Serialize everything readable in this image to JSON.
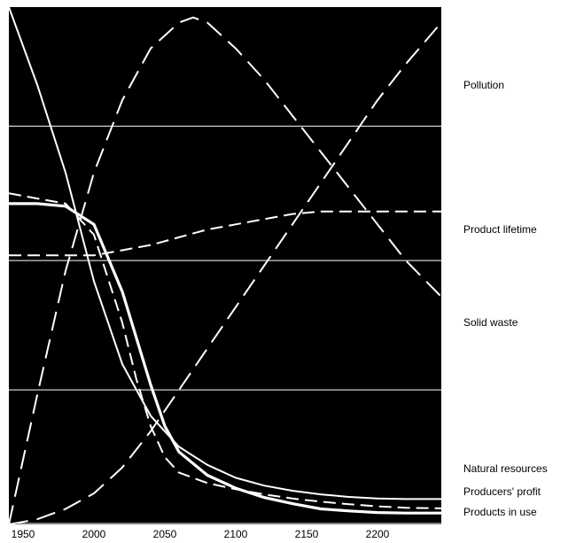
{
  "chart_data": {
    "type": "line",
    "title": "",
    "xlabel": "",
    "ylabel": "",
    "xlim": [
      1940,
      2245
    ],
    "ylim": [
      0,
      100
    ],
    "x_ticks": [
      1950,
      2000,
      2050,
      2100,
      2150,
      2200
    ],
    "y_gridlines": [
      26,
      51,
      77
    ],
    "grid": "horizontal",
    "background_color": "#000000",
    "line_color": "#ffffff",
    "series": [
      {
        "name": "Pollution",
        "style": "long-dash",
        "x": [
          1940,
          1960,
          1980,
          2000,
          2020,
          2040,
          2060,
          2080,
          2100,
          2120,
          2140,
          2160,
          2180,
          2200,
          2220,
          2245
        ],
        "y": [
          0,
          1,
          3,
          6,
          11,
          18,
          26,
          34,
          42,
          50,
          58,
          66,
          74,
          82,
          89,
          97
        ]
      },
      {
        "name": "Product lifetime",
        "style": "short-dash",
        "x": [
          1940,
          1960,
          1980,
          2000,
          2020,
          2040,
          2060,
          2080,
          2100,
          2120,
          2140,
          2160,
          2180,
          2200,
          2220,
          2245
        ],
        "y": [
          52,
          52,
          52,
          52,
          53,
          54,
          55.5,
          57,
          58,
          59,
          60,
          60.5,
          60.5,
          60.5,
          60.5,
          60.5
        ]
      },
      {
        "name": "Solid waste",
        "style": "long-dash",
        "x": [
          1940,
          1960,
          1980,
          2000,
          2020,
          2040,
          2060,
          2070,
          2080,
          2100,
          2120,
          2140,
          2160,
          2180,
          2200,
          2220,
          2245
        ],
        "y": [
          0,
          25,
          49,
          68,
          82,
          92,
          97,
          98,
          97,
          92,
          86,
          79,
          72,
          65,
          58,
          51,
          44
        ]
      },
      {
        "name": "Natural resources",
        "style": "solid",
        "x": [
          1940,
          1960,
          1980,
          2000,
          2020,
          2040,
          2060,
          2080,
          2100,
          2120,
          2140,
          2160,
          2180,
          2200,
          2220,
          2245
        ],
        "y": [
          100,
          85,
          68,
          47,
          31,
          21,
          15,
          11.5,
          9,
          7.5,
          6.5,
          5.8,
          5.3,
          5,
          4.9,
          4.9
        ]
      },
      {
        "name": "Producers' profit",
        "style": "short-dash",
        "x": [
          1940,
          1960,
          1980,
          2000,
          2020,
          2030,
          2040,
          2050,
          2060,
          2080,
          2100,
          2120,
          2140,
          2160,
          2180,
          2200,
          2220,
          2245
        ],
        "y": [
          64,
          63,
          62,
          56,
          39,
          28,
          19,
          13,
          10,
          8,
          6.8,
          5.8,
          5,
          4.4,
          3.9,
          3.5,
          3.2,
          3.1
        ]
      },
      {
        "name": "Products in use",
        "style": "solid-bold",
        "x": [
          1940,
          1960,
          1980,
          2000,
          2020,
          2030,
          2040,
          2050,
          2060,
          2080,
          2100,
          2120,
          2140,
          2160,
          2180,
          2200,
          2220,
          2245
        ],
        "y": [
          62,
          62,
          61.5,
          58,
          45,
          36,
          27,
          19,
          14,
          9.5,
          7,
          5.2,
          4,
          3,
          2.6,
          2.3,
          2.2,
          2.2
        ]
      }
    ]
  }
}
